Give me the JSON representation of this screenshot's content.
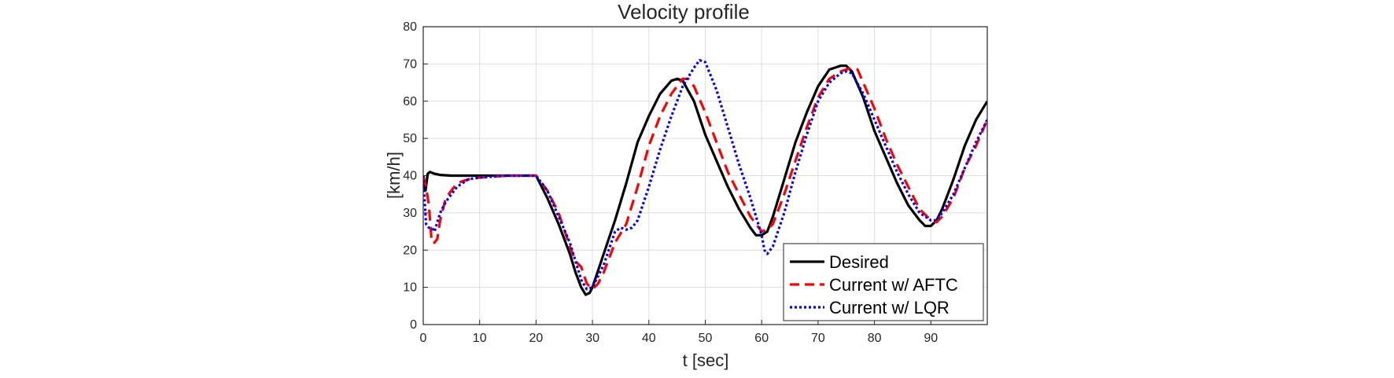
{
  "chart_data": {
    "type": "line",
    "title": "Velocity profile",
    "xlabel": "t [sec]",
    "ylabel": "[km/h]",
    "xlim": [
      0,
      100
    ],
    "ylim": [
      0,
      80
    ],
    "xticks": [
      0,
      10,
      20,
      30,
      40,
      50,
      60,
      70,
      80,
      90
    ],
    "yticks": [
      0,
      10,
      20,
      30,
      40,
      50,
      60,
      70,
      80
    ],
    "grid": true,
    "legend_position": "bottom-right",
    "series": [
      {
        "name": "Desired",
        "color": "#000000",
        "style": "solid",
        "x": [
          0,
          0.4,
          0.8,
          1.2,
          2,
          3,
          5,
          10,
          20,
          22,
          24,
          26,
          27,
          28,
          28.8,
          29.5,
          30,
          32,
          34,
          36,
          38,
          40,
          42,
          44,
          45,
          46,
          48,
          50,
          52,
          54,
          56,
          58,
          59,
          60,
          61,
          62,
          64,
          66,
          68,
          70,
          72,
          74,
          75,
          76,
          78,
          80,
          82,
          84,
          86,
          88,
          89,
          90,
          91,
          92,
          94,
          96,
          98,
          100
        ],
        "y": [
          38,
          36,
          40.5,
          41,
          40.5,
          40.2,
          40,
          40,
          40,
          34,
          27,
          19,
          14,
          10,
          8,
          8.5,
          10,
          19,
          28,
          38,
          49,
          56,
          62,
          65.5,
          66,
          65.5,
          60,
          51,
          44,
          37,
          31,
          26,
          24,
          24,
          25,
          29,
          39,
          49,
          57,
          64,
          68.5,
          69.5,
          69.5,
          68,
          61,
          52,
          45,
          38,
          32,
          28,
          26.5,
          26.5,
          28,
          31,
          39,
          48,
          55,
          60
        ]
      },
      {
        "name": "Current w/ AFTC",
        "color": "#ff0000",
        "style": "dashed",
        "x": [
          0,
          0.5,
          1,
          1.5,
          2,
          2.5,
          3,
          4,
          5,
          6,
          8,
          10,
          15,
          20,
          22,
          24,
          26,
          27,
          28,
          29,
          30,
          31,
          32,
          34,
          36,
          38,
          40,
          42,
          44,
          46,
          47,
          48,
          50,
          52,
          54,
          56,
          58,
          60,
          61,
          62,
          64,
          66,
          68,
          70,
          72,
          74,
          76,
          77,
          78,
          80,
          82,
          84,
          86,
          88,
          90,
          91,
          92,
          94,
          96,
          98,
          100
        ],
        "y": [
          40,
          37,
          32,
          22,
          22,
          23,
          28,
          34,
          36,
          38,
          39,
          39.5,
          40,
          40,
          36,
          30,
          21,
          17,
          15.5,
          11,
          9.5,
          11,
          14,
          22,
          27,
          37,
          48,
          56,
          62,
          66,
          66,
          64,
          57,
          49,
          41,
          35,
          29,
          25,
          25.5,
          27,
          35,
          44,
          53,
          61,
          66,
          68,
          69,
          68.5,
          65,
          58,
          50,
          43,
          37,
          31,
          28,
          27.5,
          29,
          34,
          42,
          48,
          55
        ]
      },
      {
        "name": "Current w/ LQR",
        "color": "#0000ff",
        "style": "dotted",
        "x": [
          0,
          0.5,
          1,
          1.5,
          2,
          3,
          4,
          5,
          6,
          8,
          10,
          15,
          20,
          22,
          24,
          26,
          27,
          28,
          29,
          30,
          32,
          34,
          35,
          36,
          37,
          38,
          40,
          42,
          44,
          46,
          48,
          49,
          50,
          52,
          54,
          56,
          58,
          60,
          60.5,
          61,
          62,
          64,
          66,
          68,
          70,
          72,
          74,
          75,
          76,
          78,
          80,
          82,
          84,
          86,
          88,
          90,
          91,
          92,
          94,
          96,
          98,
          100
        ],
        "y": [
          40,
          27,
          26,
          26,
          25,
          30,
          33,
          35,
          37,
          39,
          39.5,
          40,
          40,
          36,
          29,
          22,
          17,
          12,
          9.5,
          10,
          16,
          25,
          26,
          25.5,
          26,
          28,
          37,
          47,
          56,
          64,
          69,
          71,
          70.5,
          63,
          53,
          43,
          34,
          24,
          20,
          19,
          21,
          30,
          41,
          51,
          60,
          65,
          67.5,
          68,
          67.5,
          62,
          55,
          48,
          41,
          35,
          30,
          28,
          28,
          30,
          35,
          42,
          49,
          55
        ]
      }
    ]
  }
}
